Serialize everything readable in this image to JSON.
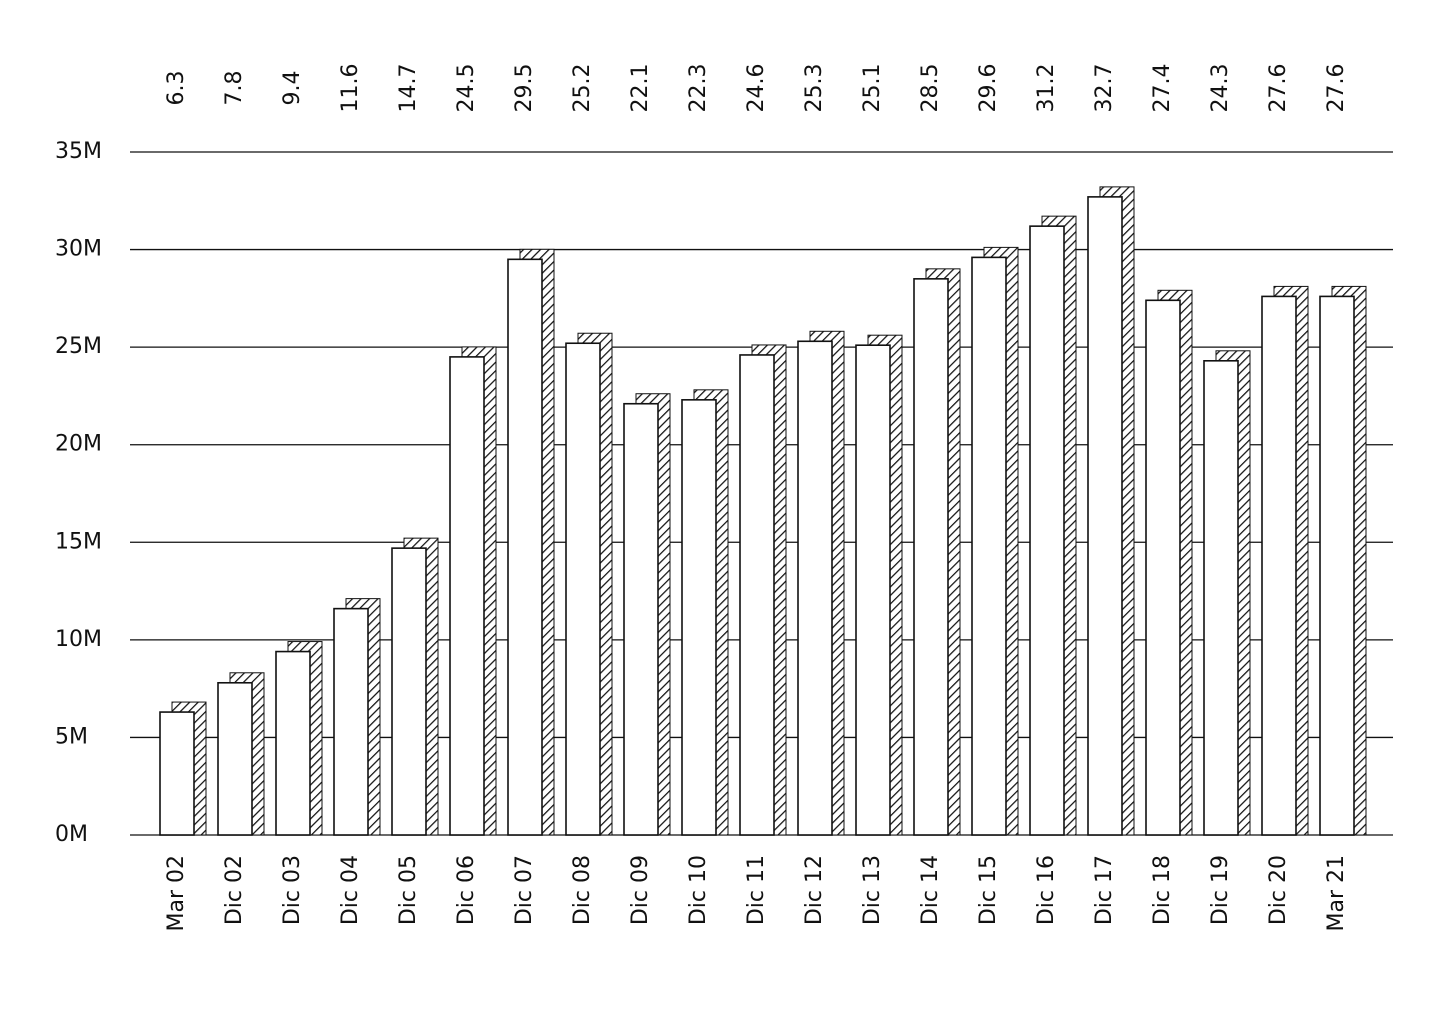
{
  "chart_data": {
    "type": "bar",
    "categories": [
      "Mar 02",
      "Dic 02",
      "Dic 03",
      "Dic 04",
      "Dic 05",
      "Dic 06",
      "Dic 07",
      "Dic 08",
      "Dic 09",
      "Dic 10",
      "Dic 11",
      "Dic 12",
      "Dic 13",
      "Dic 14",
      "Dic 15",
      "Dic 16",
      "Dic 17",
      "Dic 18",
      "Dic 19",
      "Dic 20",
      "Mar 21"
    ],
    "values": [
      6.3,
      7.8,
      9.4,
      11.6,
      14.7,
      24.5,
      29.5,
      25.2,
      22.1,
      22.3,
      24.6,
      25.3,
      25.1,
      28.5,
      29.6,
      31.2,
      32.7,
      27.4,
      24.3,
      27.6,
      27.6
    ],
    "color": "#ffffff",
    "ylim": [
      0,
      35
    ],
    "yticks": [
      {
        "value": 0,
        "label": "0M"
      },
      {
        "value": 5,
        "label": "5M"
      },
      {
        "value": 10,
        "label": "10M"
      },
      {
        "value": 15,
        "label": "15M"
      },
      {
        "value": 20,
        "label": "20M"
      },
      {
        "value": 25,
        "label": "25M"
      },
      {
        "value": 30,
        "label": "30M"
      },
      {
        "value": 35,
        "label": "35M"
      }
    ],
    "grid": true
  }
}
